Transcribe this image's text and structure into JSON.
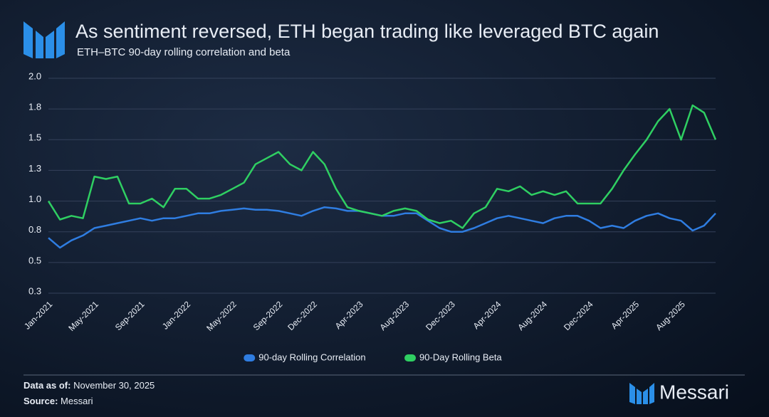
{
  "chart_data": {
    "type": "line",
    "title": "As sentiment reversed, ETH began trading like leveraged BTC again",
    "subtitle": "ETH–BTC 90-day rolling correlation and beta",
    "categories": [
      "Jan-2021",
      null,
      null,
      null,
      "May-2021",
      null,
      null,
      null,
      "Sep-2021",
      null,
      null,
      null,
      "Jan-2022",
      null,
      null,
      null,
      "May-2022",
      null,
      null,
      null,
      "Sep-2022",
      null,
      null,
      "Dec-2022",
      null,
      null,
      null,
      "Apr-2023",
      null,
      null,
      null,
      "Aug-2023",
      null,
      null,
      null,
      "Dec-2023",
      null,
      null,
      null,
      "Apr-2024",
      null,
      null,
      null,
      "Aug-2024",
      null,
      null,
      null,
      "Dec-2024",
      null,
      null,
      null,
      "Apr-2025",
      null,
      null,
      null,
      "Aug-2025",
      null,
      null,
      null
    ],
    "series": [
      {
        "name": "90-day Rolling Correlation",
        "color": "#2f7de1",
        "values": [
          0.7,
          0.62,
          0.68,
          0.72,
          0.78,
          0.8,
          0.82,
          0.84,
          0.86,
          0.84,
          0.86,
          0.86,
          0.88,
          0.9,
          0.9,
          0.92,
          0.93,
          0.94,
          0.93,
          0.93,
          0.92,
          0.9,
          0.88,
          0.92,
          0.95,
          0.94,
          0.92,
          0.92,
          0.9,
          0.88,
          0.88,
          0.9,
          0.9,
          0.84,
          0.78,
          0.75,
          0.75,
          0.78,
          0.82,
          0.86,
          0.88,
          0.86,
          0.84,
          0.82,
          0.86,
          0.88,
          0.88,
          0.84,
          0.78,
          0.8,
          0.78,
          0.84,
          0.88,
          0.9,
          0.86,
          0.84,
          0.76,
          0.8,
          0.9
        ]
      },
      {
        "name": "90-Day Rolling Beta",
        "color": "#2fcf62",
        "values": [
          1.0,
          0.85,
          0.88,
          0.86,
          1.2,
          1.18,
          1.2,
          0.98,
          0.98,
          1.02,
          0.95,
          1.1,
          1.1,
          1.02,
          1.02,
          1.05,
          1.1,
          1.15,
          1.3,
          1.35,
          1.4,
          1.3,
          1.25,
          1.4,
          1.3,
          1.1,
          0.95,
          0.92,
          0.9,
          0.88,
          0.92,
          0.94,
          0.92,
          0.85,
          0.82,
          0.84,
          0.78,
          0.9,
          0.95,
          1.1,
          1.08,
          1.12,
          1.05,
          1.08,
          1.05,
          1.08,
          0.98,
          0.98,
          0.98,
          1.1,
          1.25,
          1.38,
          1.5,
          1.65,
          1.75,
          1.5,
          1.78,
          1.72,
          1.5
        ]
      }
    ],
    "ylim": [
      0.25,
      2.0
    ],
    "yticks": [
      {
        "value": 0.25,
        "label": "0.3"
      },
      {
        "value": 0.5,
        "label": "0.5"
      },
      {
        "value": 0.75,
        "label": "0.8"
      },
      {
        "value": 1.0,
        "label": "1.0"
      },
      {
        "value": 1.25,
        "label": "1.3"
      },
      {
        "value": 1.5,
        "label": "1.5"
      },
      {
        "value": 1.75,
        "label": "1.8"
      },
      {
        "value": 2.0,
        "label": "2.0"
      }
    ],
    "grid": true,
    "legend": "bottom"
  },
  "footer": {
    "data_as_of_label": "Data as of:",
    "data_as_of": "November 30, 2025",
    "source_label": "Source:",
    "source": "Messari"
  },
  "brand": "Messari"
}
